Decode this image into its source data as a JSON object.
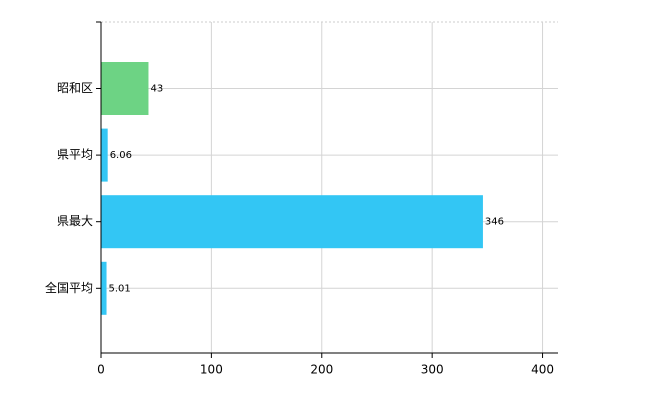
{
  "chart_data": {
    "type": "bar",
    "orientation": "horizontal",
    "categories": [
      "昭和区",
      "県平均",
      "県最大",
      "全国平均"
    ],
    "values": [
      43,
      6.06,
      346,
      5.01
    ],
    "colors": [
      "#6dd384",
      "#33c6f4",
      "#33c6f4",
      "#33c6f4"
    ],
    "xlim": [
      0,
      414
    ],
    "xticks": [
      0,
      100,
      200,
      300,
      400
    ],
    "grid": true
  }
}
